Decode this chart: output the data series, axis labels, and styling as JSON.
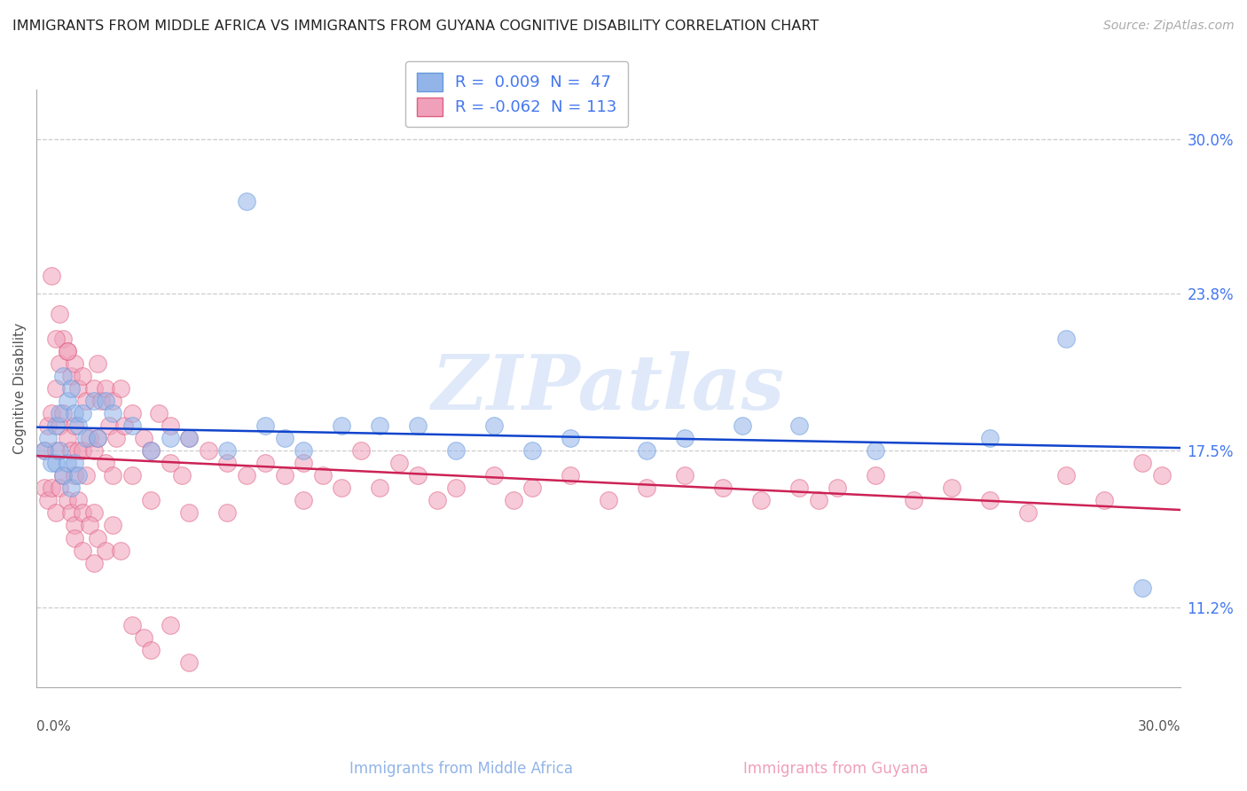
{
  "title": "IMMIGRANTS FROM MIDDLE AFRICA VS IMMIGRANTS FROM GUYANA COGNITIVE DISABILITY CORRELATION CHART",
  "source": "Source: ZipAtlas.com",
  "ylabel": "Cognitive Disability",
  "y_ticks": [
    11.2,
    17.5,
    23.8,
    30.0
  ],
  "x_min": 0.0,
  "x_max": 30.0,
  "y_min": 8.0,
  "y_max": 32.0,
  "blue_color": "#92b4e8",
  "pink_color": "#f0a0bb",
  "blue_edge_color": "#6699dd",
  "pink_edge_color": "#e06080",
  "blue_line_color": "#1144cc",
  "pink_line_color": "#cc2255",
  "blue_R": 0.009,
  "blue_N": 47,
  "pink_R": -0.062,
  "pink_N": 113,
  "watermark": "ZIPatlas",
  "legend_R1": "R =  0.009  N =  47",
  "legend_R2": "R = -0.062  N = 113",
  "legend_label1": "Immigrants from Middle Africa",
  "legend_label2": "Immigrants from Guyana",
  "legend_text_color": "#4477ee",
  "blue_scatter_x": [
    0.2,
    0.3,
    0.4,
    0.5,
    0.5,
    0.6,
    0.6,
    0.7,
    0.7,
    0.8,
    0.8,
    0.9,
    0.9,
    1.0,
    1.0,
    1.1,
    1.1,
    1.2,
    1.3,
    1.5,
    1.6,
    1.8,
    2.0,
    2.5,
    3.0,
    3.5,
    4.0,
    5.0,
    6.0,
    6.5,
    7.0,
    8.0,
    9.0,
    10.0,
    11.0,
    12.0,
    13.0,
    14.0,
    16.0,
    17.0,
    18.5,
    20.0,
    22.0,
    25.0,
    27.0,
    29.0,
    5.5
  ],
  "blue_scatter_y": [
    17.5,
    18.0,
    17.0,
    18.5,
    17.0,
    19.0,
    17.5,
    20.5,
    16.5,
    19.5,
    17.0,
    20.0,
    16.0,
    19.0,
    17.0,
    18.5,
    16.5,
    19.0,
    18.0,
    19.5,
    18.0,
    19.5,
    19.0,
    18.5,
    17.5,
    18.0,
    18.0,
    17.5,
    18.5,
    18.0,
    17.5,
    18.5,
    18.5,
    18.5,
    17.5,
    18.5,
    17.5,
    18.0,
    17.5,
    18.0,
    18.5,
    18.5,
    17.5,
    18.0,
    22.0,
    12.0,
    27.5
  ],
  "pink_scatter_x": [
    0.2,
    0.2,
    0.3,
    0.3,
    0.4,
    0.4,
    0.5,
    0.5,
    0.5,
    0.6,
    0.6,
    0.6,
    0.7,
    0.7,
    0.7,
    0.8,
    0.8,
    0.8,
    0.9,
    0.9,
    0.9,
    1.0,
    1.0,
    1.0,
    1.0,
    1.1,
    1.1,
    1.1,
    1.2,
    1.2,
    1.2,
    1.3,
    1.3,
    1.4,
    1.5,
    1.5,
    1.5,
    1.6,
    1.6,
    1.7,
    1.8,
    1.8,
    1.9,
    2.0,
    2.0,
    2.1,
    2.2,
    2.3,
    2.5,
    2.5,
    2.8,
    3.0,
    3.0,
    3.2,
    3.5,
    3.5,
    3.8,
    4.0,
    4.0,
    4.5,
    5.0,
    5.0,
    5.5,
    6.0,
    6.5,
    7.0,
    7.0,
    7.5,
    8.0,
    8.5,
    9.0,
    9.5,
    10.0,
    10.5,
    11.0,
    12.0,
    12.5,
    13.0,
    14.0,
    15.0,
    16.0,
    17.0,
    18.0,
    19.0,
    20.0,
    20.5,
    21.0,
    22.0,
    23.0,
    24.0,
    25.0,
    26.0,
    27.0,
    28.0,
    29.0,
    29.5,
    0.4,
    0.5,
    0.6,
    0.8,
    1.0,
    1.2,
    1.4,
    1.5,
    1.6,
    1.8,
    2.0,
    2.2,
    2.5,
    2.8,
    3.0,
    3.5,
    4.0
  ],
  "pink_scatter_y": [
    17.5,
    16.0,
    18.5,
    15.5,
    19.0,
    16.0,
    20.0,
    17.5,
    15.0,
    21.0,
    18.5,
    16.0,
    22.0,
    19.0,
    16.5,
    21.5,
    18.0,
    15.5,
    20.5,
    17.5,
    15.0,
    21.0,
    18.5,
    16.5,
    14.5,
    20.0,
    17.5,
    15.5,
    20.5,
    17.5,
    15.0,
    19.5,
    16.5,
    18.0,
    20.0,
    17.5,
    15.0,
    21.0,
    18.0,
    19.5,
    20.0,
    17.0,
    18.5,
    19.5,
    16.5,
    18.0,
    20.0,
    18.5,
    19.0,
    16.5,
    18.0,
    17.5,
    15.5,
    19.0,
    18.5,
    17.0,
    16.5,
    18.0,
    15.0,
    17.5,
    17.0,
    15.0,
    16.5,
    17.0,
    16.5,
    17.0,
    15.5,
    16.5,
    16.0,
    17.5,
    16.0,
    17.0,
    16.5,
    15.5,
    16.0,
    16.5,
    15.5,
    16.0,
    16.5,
    15.5,
    16.0,
    16.5,
    16.0,
    15.5,
    16.0,
    15.5,
    16.0,
    16.5,
    15.5,
    16.0,
    15.5,
    15.0,
    16.5,
    15.5,
    17.0,
    16.5,
    24.5,
    22.0,
    23.0,
    21.5,
    14.0,
    13.5,
    14.5,
    13.0,
    14.0,
    13.5,
    14.5,
    13.5,
    10.5,
    10.0,
    9.5,
    10.5,
    9.0
  ]
}
